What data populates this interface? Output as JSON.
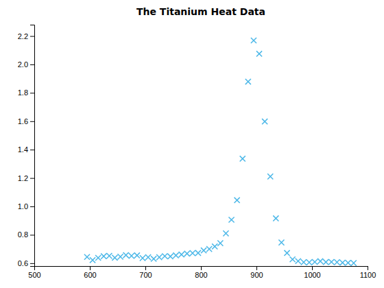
{
  "chart_data": {
    "type": "scatter",
    "title": "The Titanium Heat Data",
    "marker": "x",
    "color": "#4db8e8",
    "xlim": [
      500,
      1100
    ],
    "ylim": [
      0.58,
      2.28
    ],
    "xticks": [
      500,
      600,
      700,
      800,
      900,
      1000,
      1100
    ],
    "yticks": [
      0.6,
      0.8,
      {
        "value": 1.0,
        "label": "1.0"
      },
      1.2,
      1.4,
      1.6,
      1.8,
      {
        "value": 2.0,
        "label": "2.0"
      },
      2.2
    ],
    "x": [
      595,
      605,
      615,
      625,
      635,
      645,
      655,
      665,
      675,
      685,
      695,
      705,
      715,
      725,
      735,
      745,
      755,
      765,
      775,
      785,
      795,
      805,
      815,
      825,
      835,
      845,
      855,
      865,
      875,
      885,
      895,
      905,
      915,
      925,
      935,
      945,
      955,
      965,
      975,
      985,
      995,
      1005,
      1015,
      1025,
      1035,
      1045,
      1055,
      1065,
      1075
    ],
    "values": [
      0.644,
      0.622,
      0.638,
      0.649,
      0.652,
      0.639,
      0.646,
      0.657,
      0.652,
      0.655,
      0.636,
      0.642,
      0.631,
      0.642,
      0.65,
      0.648,
      0.655,
      0.661,
      0.668,
      0.671,
      0.672,
      0.69,
      0.7,
      0.718,
      0.741,
      0.81,
      0.906,
      1.044,
      1.336,
      1.879,
      2.169,
      2.075,
      1.598,
      1.211,
      0.916,
      0.746,
      0.672,
      0.627,
      0.615,
      0.607,
      0.606,
      0.609,
      0.614,
      0.608,
      0.609,
      0.607,
      0.604,
      0.603,
      0.601
    ]
  }
}
